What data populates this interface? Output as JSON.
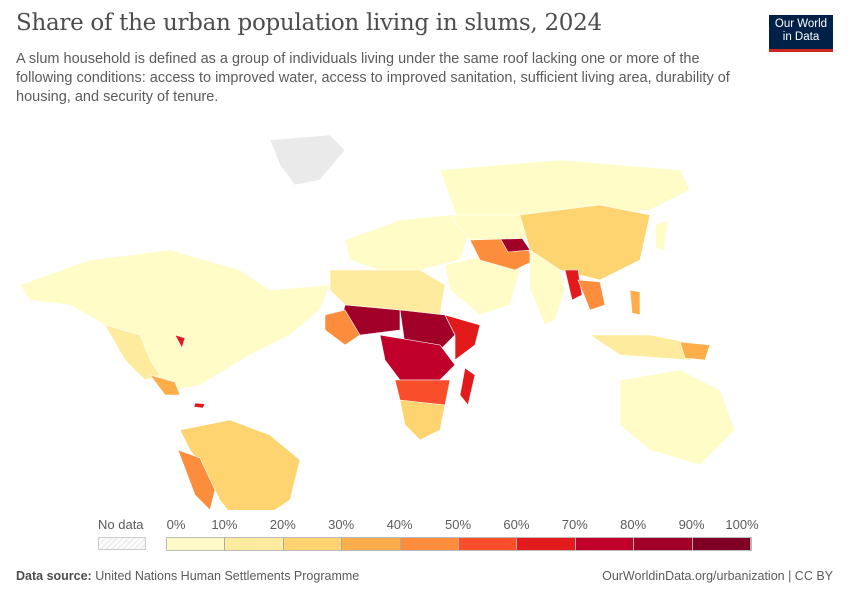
{
  "header": {
    "title": "Share of the urban population living in slums, 2024",
    "subtitle": "A slum household is defined as a group of individuals living under the same roof lacking one or more of the following conditions: access to improved water, access to improved sanitation, sufficient living area, durability of housing, and security of tenure.",
    "logo": "Our World in Data"
  },
  "legend": {
    "no_data_label": "No data",
    "ticks": [
      "0%",
      "10%",
      "20%",
      "30%",
      "40%",
      "50%",
      "60%",
      "70%",
      "80%",
      "90%",
      "100%"
    ],
    "colors": [
      "#fffcc8",
      "#feeb9d",
      "#fed470",
      "#fdae4b",
      "#fc8d3c",
      "#f94e2b",
      "#e31a1c",
      "#c0002a",
      "#a10028",
      "#800026"
    ]
  },
  "footer": {
    "source_label": "Data source:",
    "source": "United Nations Human Settlements Programme",
    "url": "OurWorldinData.org/urbanization | CC BY"
  },
  "map": {
    "type": "choropleth",
    "no_data_pattern": "hatched-grey"
  }
}
